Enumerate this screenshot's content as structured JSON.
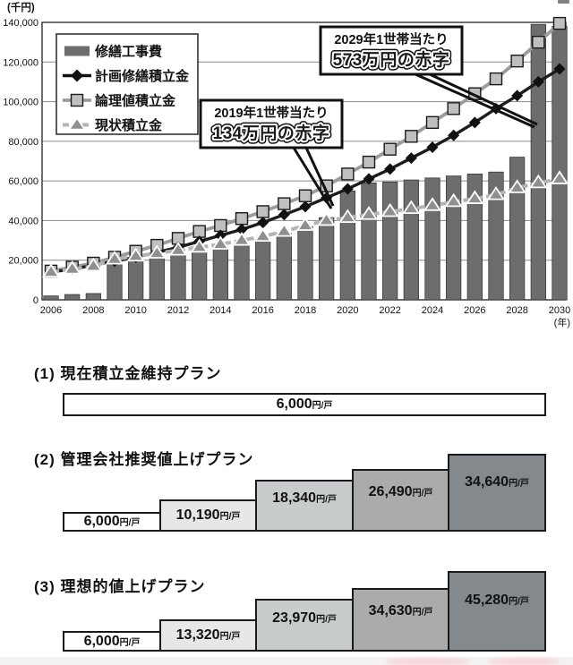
{
  "chart_data": {
    "type": "bar+line",
    "title": "",
    "y_axis_unit_label": "(千円)",
    "x_axis_unit_label": "(年)",
    "ylim": [
      0,
      140000
    ],
    "ytick_step": 20000,
    "ytick_labels": [
      "0",
      "20,000",
      "40,000",
      "60,000",
      "80,000",
      "100,000",
      "120,000",
      "140,000"
    ],
    "grid": true,
    "legend_position": "upper-left-inside",
    "years": [
      2006,
      2007,
      2008,
      2009,
      2010,
      2011,
      2012,
      2013,
      2014,
      2015,
      2016,
      2017,
      2018,
      2019,
      2020,
      2021,
      2022,
      2023,
      2024,
      2025,
      2026,
      2027,
      2028,
      2029,
      2030
    ],
    "xtick_years": [
      2006,
      2008,
      2010,
      2012,
      2014,
      2016,
      2018,
      2020,
      2022,
      2024,
      2026,
      2028,
      2030
    ],
    "series": [
      {
        "name": "修繕工事費",
        "type": "bar",
        "values": [
          2000,
          2700,
          3200,
          19000,
          20500,
          22000,
          23500,
          25000,
          26500,
          28500,
          30500,
          33500,
          37000,
          41500,
          55000,
          59000,
          59500,
          60500,
          61500,
          62500,
          63500,
          64500,
          72000,
          139000,
          138000
        ]
      },
      {
        "name": "計画修繕積立金",
        "type": "line",
        "marker": "diamond",
        "values": [
          14000,
          15500,
          17500,
          19500,
          21500,
          24000,
          26500,
          29500,
          32500,
          35500,
          39000,
          43000,
          47000,
          51500,
          56000,
          61000,
          66000,
          71500,
          77000,
          83000,
          89500,
          96500,
          103000,
          110000,
          116500
        ]
      },
      {
        "name": "論理値積立金",
        "type": "line",
        "marker": "square",
        "values": [
          14500,
          16500,
          18500,
          21500,
          24500,
          27500,
          31000,
          34500,
          37500,
          41000,
          44500,
          48500,
          52500,
          57500,
          63500,
          69500,
          76000,
          82500,
          89500,
          96500,
          104000,
          111500,
          120500,
          130000,
          139500
        ]
      },
      {
        "name": "現状積立金",
        "type": "line",
        "marker": "triangle",
        "values": [
          14000,
          15500,
          17000,
          20500,
          22000,
          23500,
          25000,
          26500,
          28000,
          30000,
          32000,
          34500,
          37500,
          40000,
          41500,
          43000,
          44500,
          46000,
          47500,
          49500,
          51000,
          53000,
          56500,
          59000,
          61000
        ]
      }
    ],
    "annotations": [
      {
        "line1": "2029年1世帯当たり",
        "line2": "573万円の赤字"
      },
      {
        "line1": "2019年1世帯当たり",
        "line2": "134万円の赤字"
      }
    ]
  },
  "plans": [
    {
      "title": "(1) 現在積立金維持プラン",
      "steps": [
        {
          "amount": "6,000",
          "unit": "円/戸"
        }
      ]
    },
    {
      "title": "(2) 管理会社推奨値上げプラン",
      "steps": [
        {
          "amount": "6,000",
          "unit": "円/戸"
        },
        {
          "amount": "10,190",
          "unit": "円/戸"
        },
        {
          "amount": "18,340",
          "unit": "円/戸"
        },
        {
          "amount": "26,490",
          "unit": "円/戸"
        },
        {
          "amount": "34,640",
          "unit": "円/戸"
        }
      ]
    },
    {
      "title": "(3) 理想的値上げプラン",
      "steps": [
        {
          "amount": "6,000",
          "unit": "円/戸"
        },
        {
          "amount": "13,320",
          "unit": "円/戸"
        },
        {
          "amount": "23,970",
          "unit": "円/戸"
        },
        {
          "amount": "34,630",
          "unit": "円/戸"
        },
        {
          "amount": "45,280",
          "unit": "円/戸"
        }
      ]
    }
  ],
  "colors": {
    "bar": "#6d6d6d",
    "planned_line": "#1c1c1c",
    "theoretical_line": "#9c9c9c",
    "theoretical_marker": "#bfbfbf",
    "current_line": "#b3b3b3",
    "current_marker": "#8f8f8f",
    "grid": "#8a8a8a",
    "axis": "#222222",
    "annotation_border": "#111111",
    "plan_step_fills": [
      "#ffffff",
      "#e7e7e7",
      "#c9cccd",
      "#a9abad",
      "#84898d"
    ]
  }
}
